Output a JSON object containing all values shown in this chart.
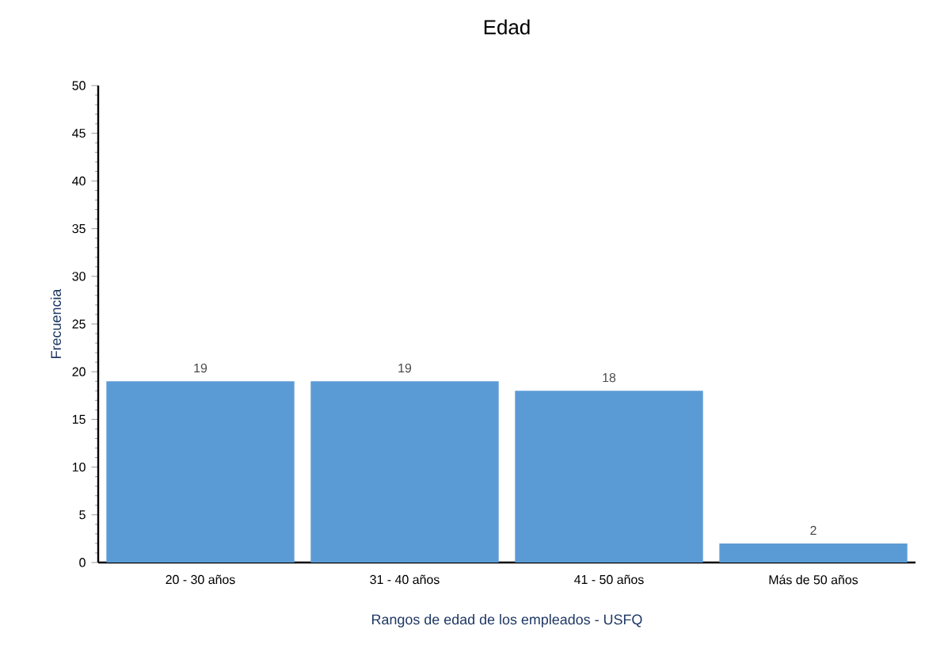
{
  "chart_data": {
    "type": "bar",
    "title": "Edad",
    "xlabel": "Rangos de edad de los empleados - USFQ",
    "ylabel": "Frecuencia",
    "categories": [
      "20 - 30 años",
      "31 - 40 años",
      "41 - 50 años",
      "Más de 50 años"
    ],
    "values": [
      19,
      19,
      18,
      2
    ],
    "color": "#5b9bd5",
    "ylim": [
      0,
      50
    ],
    "yticks": [
      0,
      5,
      10,
      15,
      20,
      25,
      30,
      35,
      40,
      45,
      50
    ],
    "data_labels": true,
    "grid": false
  }
}
